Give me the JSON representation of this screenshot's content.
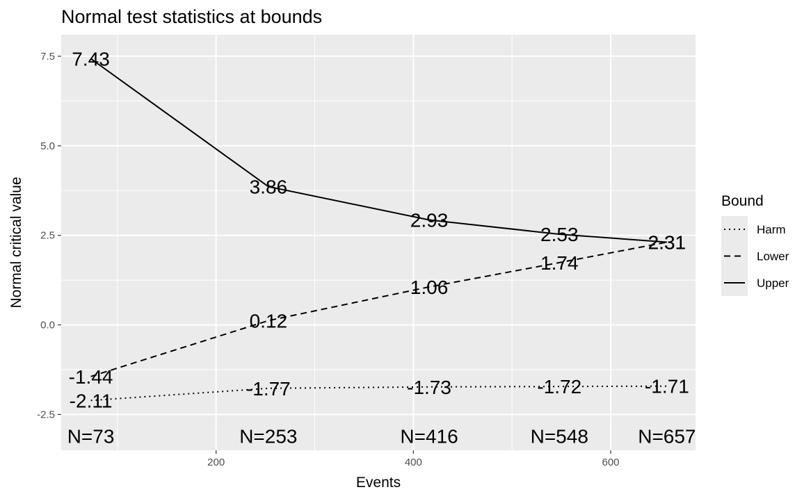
{
  "chart_data": {
    "type": "line",
    "title": "Normal test statistics at bounds",
    "xlabel": "Events",
    "ylabel": "Normal critical value",
    "xlim": [
      43,
      686
    ],
    "ylim": [
      -3.5,
      8.1
    ],
    "x_ticks": [
      200,
      400,
      600
    ],
    "y_ticks": [
      -2.5,
      0,
      2.5,
      5,
      7.5
    ],
    "y_tick_labels": [
      "-2.5",
      "0.0",
      "2.5",
      "5.0",
      "7.5"
    ],
    "grid": true,
    "legend": {
      "title": "Bound",
      "placement": "right",
      "entries": [
        {
          "label": "Harm",
          "linetype": "dotted"
        },
        {
          "label": "Lower",
          "linetype": "dashed"
        },
        {
          "label": "Upper",
          "linetype": "solid"
        }
      ]
    },
    "x": [
      73,
      253,
      416,
      548,
      657
    ],
    "series": [
      {
        "name": "Upper",
        "linetype": "solid",
        "values": [
          7.43,
          3.86,
          2.93,
          2.53,
          2.31
        ],
        "labels": [
          "7.43",
          "3.86",
          "2.93",
          "2.53",
          "2.31"
        ]
      },
      {
        "name": "Lower",
        "linetype": "dashed",
        "values": [
          -1.44,
          0.12,
          1.06,
          1.74,
          2.31
        ],
        "labels": [
          "-1.44",
          "0.12",
          "1.06",
          "1.74",
          "2.31"
        ]
      },
      {
        "name": "Harm",
        "linetype": "dotted",
        "values": [
          -2.11,
          -1.77,
          -1.73,
          -1.72,
          -1.71
        ],
        "labels": [
          "-2.11",
          "-1.77",
          "-1.73",
          "-1.72",
          "-1.71"
        ]
      }
    ],
    "n_labels": [
      "N=73",
      "N=253",
      "N=416",
      "N=548",
      "N=657"
    ],
    "n_label_y": -3.1,
    "colors": {
      "panel": "#ebebeb",
      "grid": "#ffffff",
      "line": "#000000",
      "tick_text": "#4d4d4d"
    }
  }
}
